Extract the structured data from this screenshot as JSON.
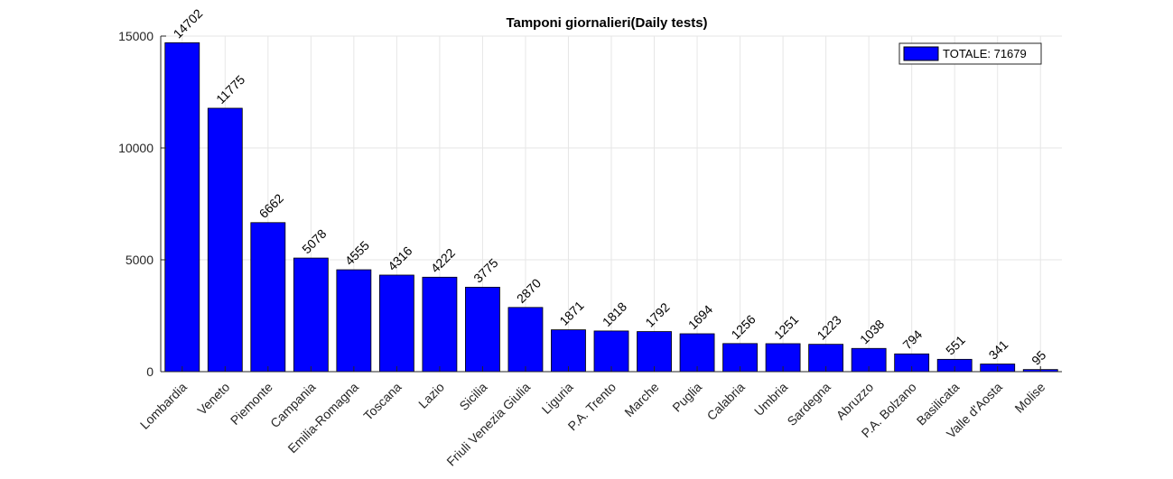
{
  "chart_data": {
    "type": "bar",
    "title": "Tamponi giornalieri(Daily tests)",
    "xlabel": "",
    "ylabel": "",
    "ylim": [
      0,
      15000
    ],
    "yticks": [
      0,
      5000,
      10000,
      15000
    ],
    "grid": true,
    "legend": {
      "label": "TOTALE: 71679",
      "position": "top-right"
    },
    "bar_color": "#0000FF",
    "categories": [
      "Lombardia",
      "Veneto",
      "Piemonte",
      "Campania",
      "Emilia-Romagna",
      "Toscana",
      "Lazio",
      "Sicilia",
      "Friuli Venezia Giulia",
      "Liguria",
      "P.A. Trento",
      "Marche",
      "Puglia",
      "Calabria",
      "Umbria",
      "Sardegna",
      "Abruzzo",
      "P.A. Bolzano",
      "Basilicata",
      "Valle d'Aosta",
      "Molise"
    ],
    "values": [
      14702,
      11775,
      6662,
      5078,
      4555,
      4316,
      4222,
      3775,
      2870,
      1871,
      1818,
      1792,
      1694,
      1256,
      1251,
      1223,
      1038,
      794,
      551,
      341,
      95
    ]
  }
}
